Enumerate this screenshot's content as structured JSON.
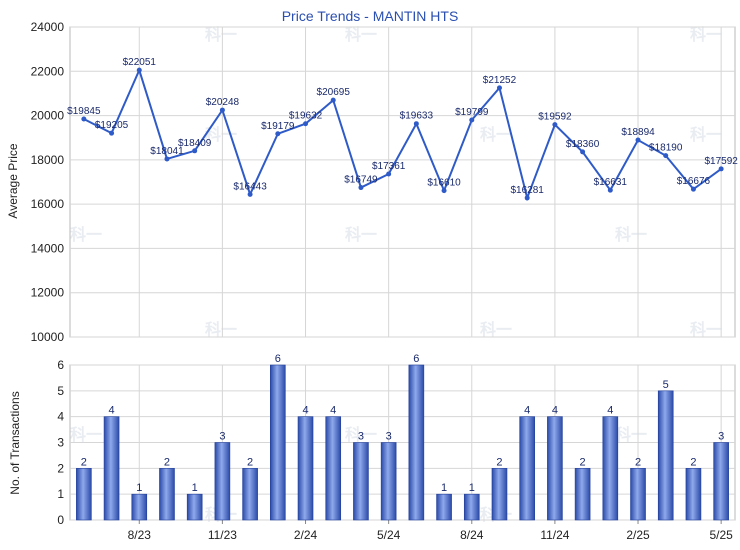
{
  "chart_data": [
    {
      "type": "line",
      "title": "Price Trends - MANTIN HTS",
      "ylabel": "Average Price",
      "ylim": [
        10000,
        24000
      ],
      "yticks": [
        10000,
        12000,
        14000,
        16000,
        18000,
        20000,
        22000,
        24000
      ],
      "grid": true,
      "color": "#2f5bc8",
      "values": [
        19845,
        19205,
        22051,
        18041,
        18409,
        20248,
        16443,
        19179,
        19632,
        20695,
        16749,
        17361,
        19633,
        16610,
        19799,
        21252,
        16281,
        19592,
        18360,
        16631,
        18894,
        18190,
        16676,
        17592
      ],
      "value_labels": [
        "$19845",
        "$19205",
        "$22051",
        "$18041",
        "$18409",
        "$20248",
        "$16443",
        "$19179",
        "$19632",
        "$20695",
        "$16749",
        "$17361",
        "$19633",
        "$16610",
        "$19799",
        "$21252",
        "$16281",
        "$19592",
        "$18360",
        "$16631",
        "$18894",
        "$18190",
        "$16676",
        "$17592"
      ]
    },
    {
      "type": "bar",
      "ylabel": "No. of Transactions",
      "ylim": [
        0,
        6
      ],
      "yticks": [
        0,
        1,
        2,
        3,
        4,
        5,
        6
      ],
      "grid": true,
      "color": "#3a5fcd",
      "values": [
        2,
        4,
        1,
        2,
        1,
        3,
        2,
        6,
        4,
        4,
        3,
        3,
        6,
        1,
        1,
        2,
        4,
        4,
        2,
        4,
        2,
        5,
        2,
        3
      ],
      "x_tick_labels": [
        {
          "index": 2,
          "label": "8/23"
        },
        {
          "index": 5,
          "label": "11/23"
        },
        {
          "index": 8,
          "label": "2/24"
        },
        {
          "index": 11,
          "label": "5/24"
        },
        {
          "index": 14,
          "label": "8/24"
        },
        {
          "index": 17,
          "label": "11/24"
        },
        {
          "index": 20,
          "label": "2/25"
        },
        {
          "index": 23,
          "label": "5/25"
        }
      ]
    }
  ]
}
